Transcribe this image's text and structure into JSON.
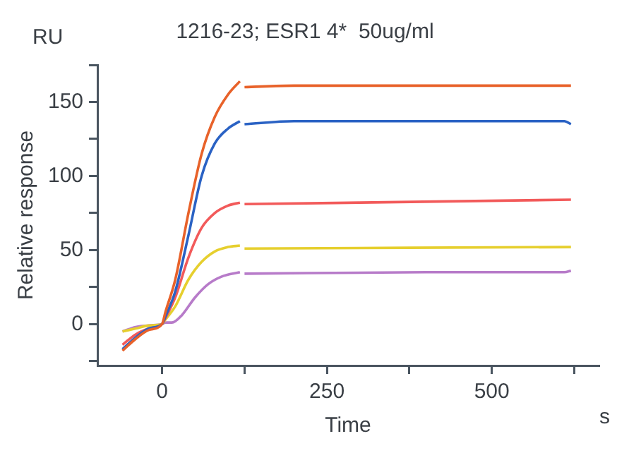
{
  "chart_data": {
    "type": "line",
    "title": "1216-23; ESR1 4*  50ug/ml",
    "xlabel": "Time",
    "ylabel": "Relative response",
    "annotations": [
      "RU",
      "s"
    ],
    "xlim": [
      -98,
      662
    ],
    "xticks": [
      0,
      {
        "value": 125,
        "label": null
      },
      250,
      {
        "value": 375,
        "label": null
      },
      500,
      {
        "value": 625,
        "label": null
      }
    ],
    "ylim": [
      -28,
      175
    ],
    "yticks": [
      {
        "value": -25,
        "label": null
      },
      0,
      {
        "value": 25,
        "label": null
      },
      50,
      {
        "value": 75,
        "label": null
      },
      100,
      {
        "value": 125,
        "label": null
      },
      150,
      {
        "value": 175,
        "label": null
      }
    ],
    "legend": false,
    "marker": "none",
    "line_style": "solid",
    "series": [
      {
        "color": "#e8622a",
        "x": [
          -60,
          -40,
          -20,
          0,
          5,
          20,
          40,
          60,
          80,
          100,
          118,
          120,
          125,
          200,
          400,
          620
        ],
        "values": [
          -18,
          -10,
          -4,
          0,
          8,
          30,
          75,
          115,
          140,
          155,
          164,
          null,
          160,
          161,
          161,
          161
        ]
      },
      {
        "color": "#2a62c4",
        "x": [
          -60,
          -40,
          -20,
          0,
          5,
          20,
          40,
          60,
          80,
          100,
          118,
          120,
          125,
          200,
          400,
          610,
          620
        ],
        "values": [
          -17,
          -9,
          -3,
          0,
          5,
          22,
          60,
          100,
          122,
          132,
          137,
          null,
          135,
          137,
          137,
          137,
          135
        ]
      },
      {
        "color": "#f25a5a",
        "x": [
          -60,
          -40,
          -20,
          0,
          5,
          20,
          40,
          60,
          80,
          100,
          118,
          120,
          125,
          300,
          620
        ],
        "values": [
          -14,
          -7,
          -3,
          0,
          4,
          18,
          45,
          65,
          75,
          80,
          82,
          null,
          81,
          82,
          84
        ]
      },
      {
        "color": "#e6cf2e",
        "x": [
          -60,
          -40,
          -20,
          0,
          5,
          20,
          40,
          60,
          80,
          100,
          118,
          120,
          125,
          620
        ],
        "values": [
          -5,
          -3,
          -1,
          0,
          3,
          12,
          30,
          42,
          49,
          52,
          53,
          null,
          51,
          52
        ]
      },
      {
        "color": "#b77bc9",
        "x": [
          -60,
          -40,
          -20,
          0,
          5,
          15,
          30,
          50,
          70,
          90,
          118,
          120,
          125,
          400,
          610,
          620
        ],
        "values": [
          -5,
          -2,
          -1,
          0,
          1,
          1,
          6,
          18,
          27,
          32,
          35,
          null,
          34,
          35,
          35,
          36
        ]
      }
    ]
  }
}
